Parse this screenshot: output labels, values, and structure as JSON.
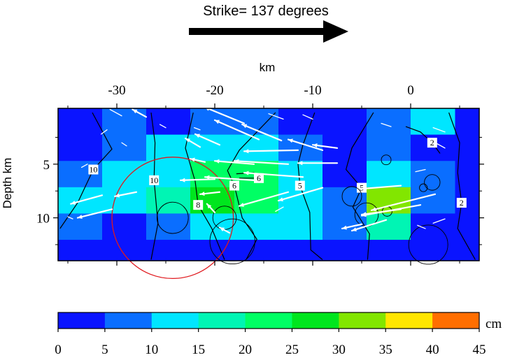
{
  "chart_data": {
    "type": "heatmap",
    "title": "Strike= 137 degrees",
    "xlabel": "km",
    "ylabel": "Depth km",
    "xlim": [
      -36,
      7
    ],
    "ylim": [
      14,
      -0.2
    ],
    "xticks": [
      "-30",
      "-20",
      "-10",
      "0"
    ],
    "xtick_values": [
      -30,
      -20,
      -10,
      0
    ],
    "yticks": [
      "5",
      "10"
    ],
    "ytick_values": [
      5,
      10
    ],
    "colorbar": {
      "unit": "cm",
      "ticks": [
        "0",
        "5",
        "10",
        "15",
        "20",
        "25",
        "30",
        "35",
        "40",
        "45"
      ],
      "tick_values": [
        0,
        5,
        10,
        15,
        20,
        25,
        30,
        35,
        40,
        45
      ],
      "colors": [
        "#0a14ff",
        "#0a6eff",
        "#00e6ff",
        "#00f5b4",
        "#00ff64",
        "#00e61e",
        "#82e600",
        "#ffe600",
        "#ff6e00"
      ]
    },
    "grid": {
      "x0": -36,
      "dx": 4.5,
      "y0": -0.2,
      "dy": 2.45,
      "rows": 6,
      "cols": 9,
      "values": [
        [
          2,
          5,
          2,
          5,
          9,
          2,
          2,
          5,
          12
        ],
        [
          2,
          5,
          11,
          13,
          13,
          6,
          3,
          7,
          2
        ],
        [
          6,
          10,
          12,
          21,
          21,
          14,
          3,
          14,
          6
        ],
        [
          11,
          14,
          17,
          25,
          22,
          14,
          9,
          34,
          8
        ],
        [
          5,
          3,
          7,
          12,
          13,
          14,
          5,
          15,
          3
        ],
        [
          2,
          3,
          2,
          2,
          3,
          3,
          3,
          3,
          2
        ]
      ]
    },
    "contours": [
      {
        "label": "10",
        "points": [
          [
            -32.5,
            0.2
          ],
          [
            -30.5,
            3.6
          ],
          [
            -32.4,
            5.5
          ],
          [
            -34.0,
            8.6
          ],
          [
            -35.8,
            11.0
          ]
        ]
      },
      {
        "label": "10",
        "points": [
          [
            -26.5,
            0.2
          ],
          [
            -26.1,
            3.0
          ],
          [
            -26.2,
            6.5
          ],
          [
            -25.8,
            10.5
          ],
          [
            -26.5,
            13.9
          ]
        ]
      },
      {
        "label": "8",
        "points": [
          [
            -22.2,
            0.2
          ],
          [
            -23.0,
            3.5
          ],
          [
            -22.0,
            6.6
          ],
          [
            -21.7,
            8.8
          ],
          [
            -20.3,
            11.0
          ],
          [
            -19.0,
            13.9
          ]
        ]
      },
      {
        "label": "6",
        "points": [
          [
            -13.8,
            0.2
          ],
          [
            -17.5,
            3.7
          ],
          [
            -18.7,
            5.6
          ],
          [
            -18.0,
            7.0
          ],
          [
            -17.2,
            10.0
          ],
          [
            -15.7,
            12.0
          ],
          [
            -16.8,
            13.9
          ]
        ]
      },
      {
        "label": "6",
        "points": [
          [
            -17.8,
            5.9
          ],
          [
            -16.0,
            5.8
          ],
          [
            -15.5,
            6.3
          ],
          [
            -17.5,
            6.3
          ]
        ]
      },
      {
        "label": "5",
        "points": [
          [
            -9.8,
            0.2
          ],
          [
            -11.0,
            3.2
          ],
          [
            -11.5,
            5.0
          ],
          [
            -11.3,
            7.0
          ],
          [
            -10.3,
            9.5
          ],
          [
            -10.2,
            13.0
          ],
          [
            -9.0,
            13.9
          ]
        ]
      },
      {
        "label": "5",
        "points": [
          [
            -3.8,
            0.2
          ],
          [
            -6.0,
            3.5
          ],
          [
            -6.6,
            5.5
          ],
          [
            -5.0,
            7.2
          ],
          [
            -5.9,
            9.0
          ],
          [
            -4.2,
            11.5
          ],
          [
            -4.4,
            13.9
          ]
        ]
      },
      {
        "label": "2",
        "points": [
          [
            -0.5,
            1.5
          ],
          [
            1.0,
            2.0
          ],
          [
            2.2,
            3.0
          ],
          [
            3.0,
            4.0
          ]
        ]
      },
      {
        "label": "2",
        "points": [
          [
            3.9,
            0.2
          ],
          [
            5.0,
            3.0
          ],
          [
            4.8,
            5.8
          ],
          [
            5.2,
            8.6
          ],
          [
            4.8,
            11.0
          ],
          [
            6.6,
            13.9
          ]
        ]
      }
    ],
    "circles": [
      {
        "x": -24.3,
        "y": 10.0,
        "r": 6.2,
        "color": "#e0191e"
      },
      {
        "x": -24.3,
        "y": 10.0,
        "r": 1.6,
        "color": "#000000"
      },
      {
        "x": -19.0,
        "y": 10.0,
        "r": 1.2,
        "color": "#000000"
      },
      {
        "x": -18.2,
        "y": 12.2,
        "r": 2.3,
        "color": "#000000"
      },
      {
        "x": -6.0,
        "y": 8.0,
        "r": 1.0,
        "color": "#000000"
      },
      {
        "x": -4.5,
        "y": 9.7,
        "r": 1.2,
        "color": "#000000"
      },
      {
        "x": -2.4,
        "y": 9.4,
        "r": 0.5,
        "color": "#000000"
      },
      {
        "x": -2.5,
        "y": 4.6,
        "r": 0.5,
        "color": "#000000"
      },
      {
        "x": 2.2,
        "y": 6.7,
        "r": 0.8,
        "color": "#000000"
      },
      {
        "x": 1.3,
        "y": 7.2,
        "r": 0.4,
        "color": "#000000"
      },
      {
        "x": 1.8,
        "y": 12.5,
        "r": 2.0,
        "color": "#000000"
      }
    ],
    "slip_vectors": [
      {
        "x": -29.5,
        "y": 0.5,
        "dx": -1.2,
        "dy": -0.6,
        "w": false
      },
      {
        "x": -27.0,
        "y": 0.6,
        "dx": -1.4,
        "dy": -0.7,
        "w": true
      },
      {
        "x": -25.0,
        "y": 1.6,
        "dx": -0.6,
        "dy": -0.3,
        "w": false
      },
      {
        "x": -31.0,
        "y": 1.8,
        "dx": -0.6,
        "dy": 0.4,
        "w": false
      },
      {
        "x": -29.0,
        "y": 3.3,
        "dx": -0.5,
        "dy": -0.3,
        "w": false
      },
      {
        "x": -21.5,
        "y": 1.8,
        "dx": -0.6,
        "dy": -0.2,
        "w": false
      },
      {
        "x": -17.0,
        "y": 1.2,
        "dx": -4.0,
        "dy": -1.5,
        "w": true
      },
      {
        "x": -13.0,
        "y": 0.8,
        "dx": -1.5,
        "dy": -0.5,
        "w": false
      },
      {
        "x": -10.0,
        "y": 0.8,
        "dx": -1.0,
        "dy": -0.4,
        "w": false
      },
      {
        "x": -15.5,
        "y": 2.7,
        "dx": -4.5,
        "dy": -1.8,
        "w": true
      },
      {
        "x": -13.2,
        "y": 2.8,
        "dx": -4.0,
        "dy": -1.5,
        "w": true
      },
      {
        "x": -19.5,
        "y": 3.2,
        "dx": -2.5,
        "dy": -1.0,
        "w": true
      },
      {
        "x": -21.5,
        "y": 3.4,
        "dx": -1.5,
        "dy": -0.8,
        "w": true
      },
      {
        "x": -11.5,
        "y": 3.7,
        "dx": -5.5,
        "dy": 0.1,
        "w": true
      },
      {
        "x": -9.0,
        "y": 3.7,
        "dx": -3.5,
        "dy": -1.0,
        "w": true
      },
      {
        "x": -7.5,
        "y": 3.5,
        "dx": -2.5,
        "dy": -0.3,
        "w": true
      },
      {
        "x": -7.5,
        "y": 4.9,
        "dx": -4.0,
        "dy": 0.0,
        "w": true
      },
      {
        "x": -12.5,
        "y": 5.0,
        "dx": -5.5,
        "dy": -0.3,
        "w": true
      },
      {
        "x": -16.0,
        "y": 5.0,
        "dx": -4.0,
        "dy": -0.3,
        "w": true
      },
      {
        "x": -21.0,
        "y": 4.8,
        "dx": -1.5,
        "dy": -0.3,
        "w": true
      },
      {
        "x": -11.0,
        "y": 6.2,
        "dx": -6.0,
        "dy": -0.4,
        "w": true
      },
      {
        "x": -16.0,
        "y": 6.5,
        "dx": -5.0,
        "dy": -0.3,
        "w": true
      },
      {
        "x": -20.0,
        "y": 6.4,
        "dx": -3.5,
        "dy": 0.1,
        "w": true
      },
      {
        "x": -12.5,
        "y": 7.6,
        "dx": -5.0,
        "dy": 1.3,
        "w": true
      },
      {
        "x": -9.0,
        "y": 7.2,
        "dx": -4.5,
        "dy": 1.2,
        "w": true
      },
      {
        "x": -19.5,
        "y": 7.6,
        "dx": -2.0,
        "dy": 0.2,
        "w": true
      },
      {
        "x": -31.5,
        "y": 7.9,
        "dx": -3.2,
        "dy": 0.8,
        "w": true
      },
      {
        "x": -30.5,
        "y": 9.2,
        "dx": -3.5,
        "dy": 0.8,
        "w": true
      },
      {
        "x": -28.0,
        "y": 7.6,
        "dx": -2.2,
        "dy": 0.4,
        "w": true
      },
      {
        "x": -33.0,
        "y": 5.0,
        "dx": -0.6,
        "dy": 0.3,
        "w": false
      },
      {
        "x": -35.0,
        "y": 9.9,
        "dx": 0.5,
        "dy": 0.2,
        "w": false
      },
      {
        "x": -18.5,
        "y": 11.4,
        "dx": -1.0,
        "dy": -0.5,
        "w": true
      },
      {
        "x": -20.0,
        "y": 9.5,
        "dx": -0.8,
        "dy": -0.8,
        "w": true
      },
      {
        "x": -13.0,
        "y": 9.0,
        "dx": -0.8,
        "dy": 0.4,
        "w": false
      },
      {
        "x": -2.0,
        "y": 1.5,
        "dx": -1.0,
        "dy": -0.3,
        "w": false
      },
      {
        "x": 3.5,
        "y": 2.0,
        "dx": -1.2,
        "dy": -0.4,
        "w": false
      },
      {
        "x": 3.5,
        "y": 3.5,
        "dx": -1.0,
        "dy": -0.5,
        "w": false
      },
      {
        "x": 1.5,
        "y": 5.5,
        "dx": -1.0,
        "dy": 0.2,
        "w": false
      },
      {
        "x": -1.0,
        "y": 7.0,
        "dx": -4.0,
        "dy": 0.3,
        "w": true
      },
      {
        "x": 2.5,
        "y": 7.8,
        "dx": -6.5,
        "dy": 1.5,
        "w": true
      },
      {
        "x": 1.0,
        "y": 8.8,
        "dx": -6.0,
        "dy": 1.0,
        "w": true
      },
      {
        "x": -1.0,
        "y": 9.2,
        "dx": -4.0,
        "dy": 0.5,
        "w": true
      },
      {
        "x": -2.5,
        "y": 10.2,
        "dx": -3.5,
        "dy": 1.0,
        "w": true
      },
      {
        "x": -5.0,
        "y": 10.6,
        "dx": -2.0,
        "dy": 0.4,
        "w": true
      },
      {
        "x": 3.5,
        "y": 10.1,
        "dx": -1.2,
        "dy": 0.4,
        "w": false
      },
      {
        "x": 1.5,
        "y": 11.0,
        "dx": -0.8,
        "dy": -0.3,
        "w": false
      }
    ]
  }
}
